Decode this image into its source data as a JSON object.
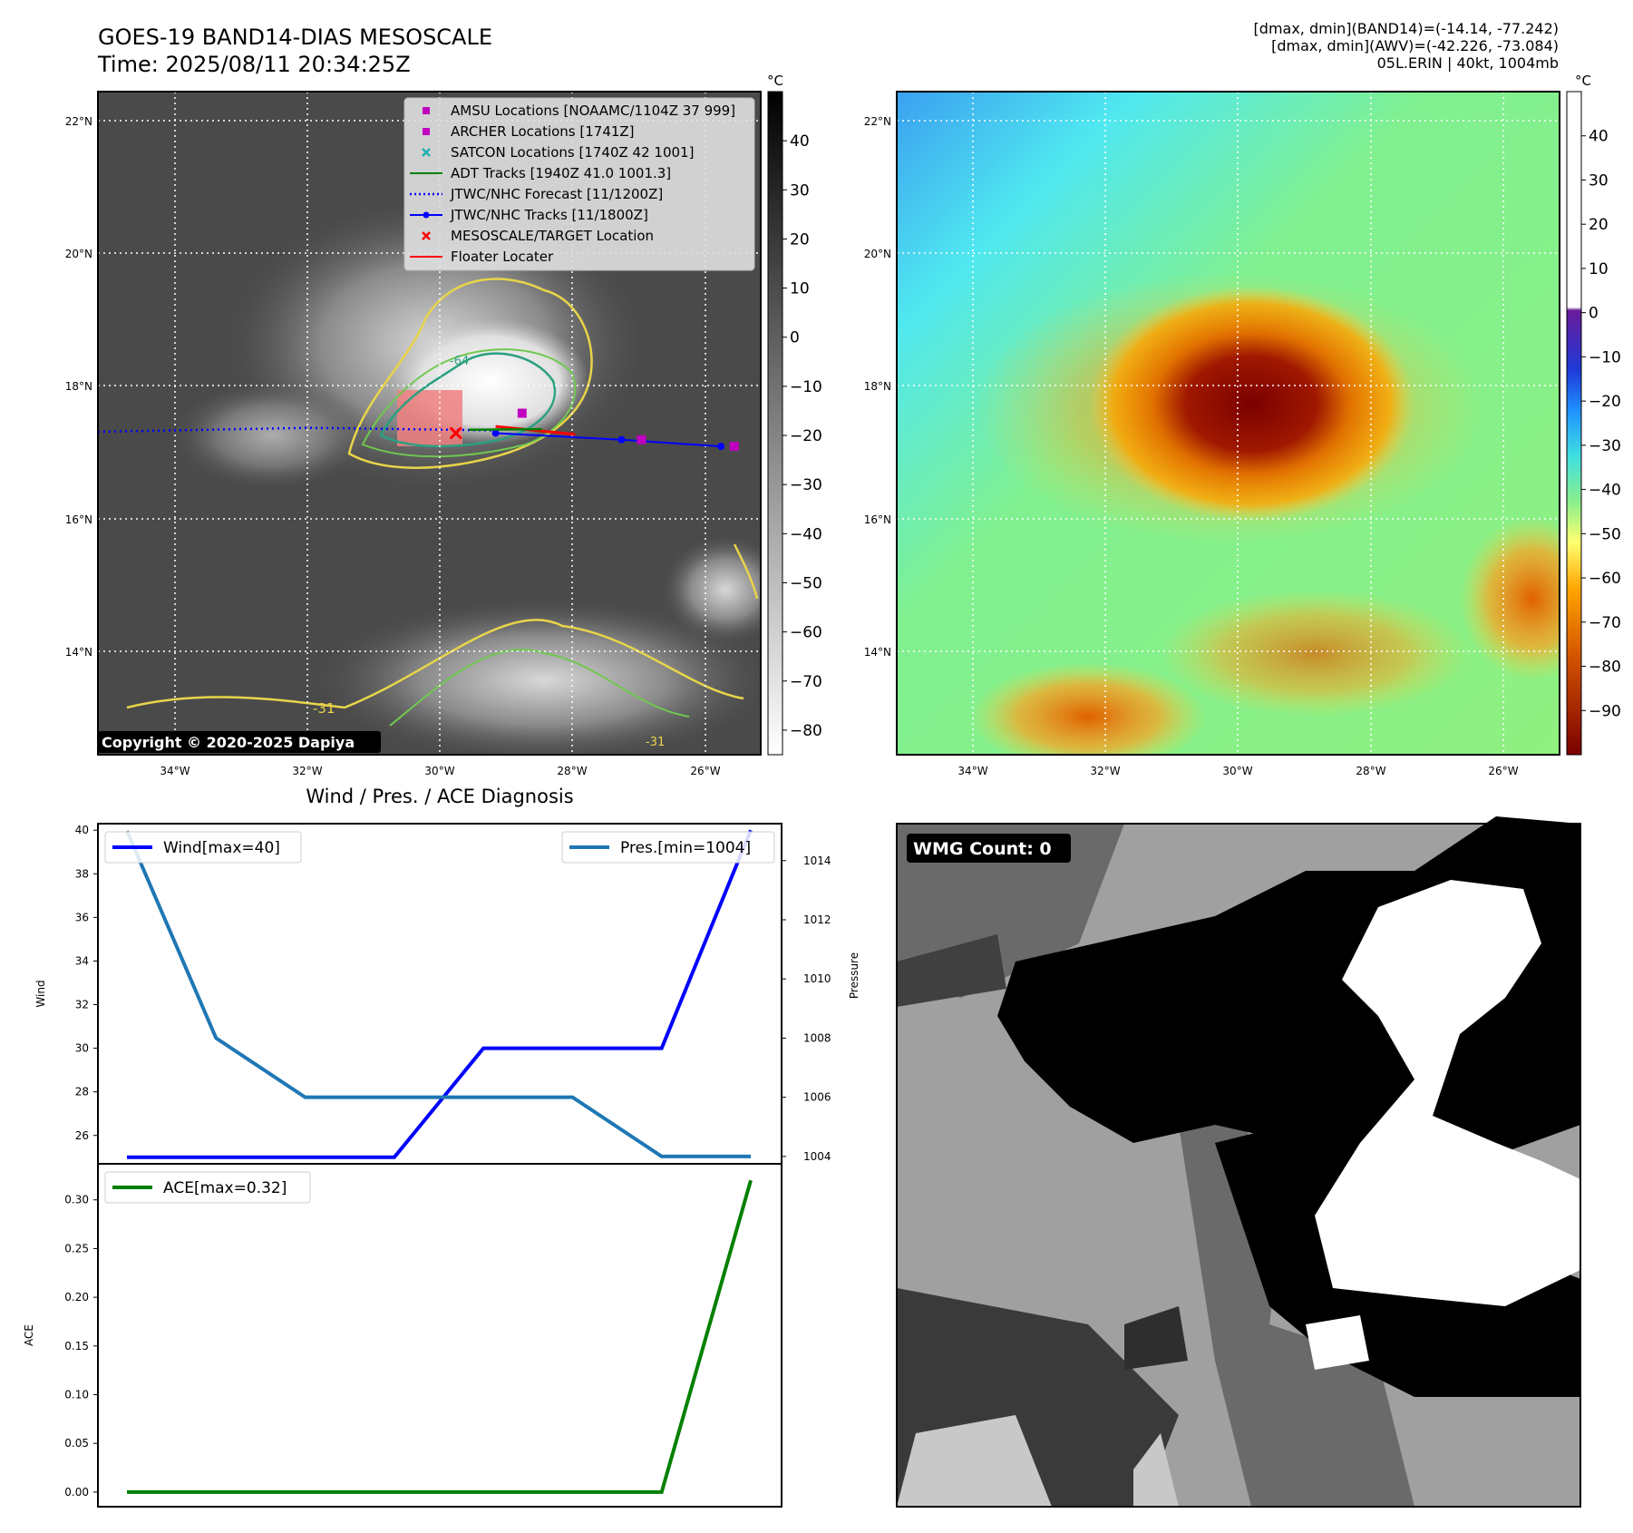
{
  "header": {
    "title_line1": "GOES-19 BAND14-DIAS MESOSCALE",
    "title_line2": "Time: 2025/08/11 20:34:25Z",
    "info_line1": "[dmax, dmin](BAND14)=(-14.14, -77.242)",
    "info_line2": "[dmax, dmin](AWV)=(-42.226, -73.084)",
    "info_line3": "05L.ERIN | 40kt, 1004mb"
  },
  "map": {
    "lat_labels": [
      "22°N",
      "20°N",
      "18°N",
      "16°N",
      "14°N"
    ],
    "lon_labels": [
      "34°W",
      "32°W",
      "30°W",
      "28°W",
      "26°W"
    ],
    "copyright": "Copyright © 2020-2025 Dapiya",
    "contour_labels": [
      "-31",
      "-64",
      "-31"
    ],
    "legend": [
      {
        "label": "AMSU Locations [NOAAMC/1104Z 37 999]",
        "color": "#c000c0",
        "symbol": "square"
      },
      {
        "label": "ARCHER Locations [1741Z]",
        "color": "#c000c0",
        "symbol": "square"
      },
      {
        "label": "SATCON Locations [1740Z 42 1001]",
        "color": "#20b0b0",
        "symbol": "x"
      },
      {
        "label": "ADT Tracks [1940Z 41.0 1001.3]",
        "color": "#008000",
        "symbol": "line"
      },
      {
        "label": "JTWC/NHC Forecast [11/1200Z]",
        "color": "#0000ff",
        "symbol": "dotted"
      },
      {
        "label": "JTWC/NHC Tracks [11/1800Z]",
        "color": "#0000ff",
        "symbol": "line-dot"
      },
      {
        "label": "MESOSCALE/TARGET Location",
        "color": "#ff0000",
        "symbol": "x"
      },
      {
        "label": "Floater Locater",
        "color": "#ff0000",
        "symbol": "line"
      }
    ],
    "track_points": [
      {
        "lon": -29.2,
        "lat": 17.4
      },
      {
        "lon": -27.3,
        "lat": 17.3
      },
      {
        "lon": -25.8,
        "lat": 17.2
      }
    ],
    "forecast_points": [
      {
        "lon": -35.2,
        "lat": 17.42
      },
      {
        "lon": -32.0,
        "lat": 17.48
      },
      {
        "lon": -29.2,
        "lat": 17.44
      }
    ],
    "amsu_points": [
      {
        "lon": -28.8,
        "lat": 17.7
      }
    ],
    "archer_points": [
      {
        "lon": -27.0,
        "lat": 17.3
      },
      {
        "lon": -25.6,
        "lat": 17.2
      }
    ],
    "target": {
      "lon": -29.8,
      "lat": 17.4
    }
  },
  "colorbar_ir": {
    "unit": "°C",
    "ticks": [
      "40",
      "30",
      "20",
      "10",
      "0",
      "−10",
      "−20",
      "−30",
      "−40",
      "−50",
      "−60",
      "−70",
      "−80"
    ],
    "range": [
      -85,
      50
    ]
  },
  "colorbar_wv": {
    "unit": "°C",
    "ticks": [
      "40",
      "30",
      "20",
      "10",
      "0",
      "−10",
      "−20",
      "−30",
      "−40",
      "−50",
      "−60",
      "−70",
      "−80",
      "−90"
    ],
    "range": [
      -100,
      50
    ]
  },
  "wmg": {
    "label": "WMG Count: 0"
  },
  "chart_data": [
    {
      "type": "line",
      "title": "Wind / Pres. / ACE Diagnosis",
      "ylabel": "Wind",
      "y2label": "Pressure",
      "ylim": [
        24.7,
        40.3
      ],
      "y2lim": [
        1003.75,
        1015.25
      ],
      "yticks": [
        26,
        28,
        30,
        32,
        34,
        36,
        38,
        40
      ],
      "y2ticks": [
        1004,
        1006,
        1008,
        1010,
        1012,
        1014
      ],
      "x": [
        0,
        1,
        2,
        3,
        4,
        5,
        6,
        7
      ],
      "series": [
        {
          "name": "Wind[max=40]",
          "color": "#0000ff",
          "axis": "left",
          "values": [
            25,
            25,
            25,
            25,
            30,
            30,
            30,
            40
          ]
        },
        {
          "name": "Pres.[min=1004]",
          "color": "#1f77b4",
          "axis": "right",
          "values": [
            1015,
            1008,
            1006,
            1006,
            1006,
            1006,
            1004,
            1004
          ]
        }
      ],
      "legend": [
        "top-left",
        "top-right"
      ]
    },
    {
      "type": "line",
      "ylabel": "ACE",
      "ylim": [
        -0.015,
        0.337
      ],
      "yticks": [
        "0.00",
        "0.05",
        "0.10",
        "0.15",
        "0.20",
        "0.25",
        "0.30"
      ],
      "x": [
        0,
        1,
        2,
        3,
        4,
        5,
        6,
        7
      ],
      "series": [
        {
          "name": "ACE[max=0.32]",
          "color": "#008000",
          "values": [
            0,
            0,
            0,
            0,
            0,
            0,
            0,
            0.32
          ]
        }
      ],
      "legend": "top-left"
    }
  ]
}
